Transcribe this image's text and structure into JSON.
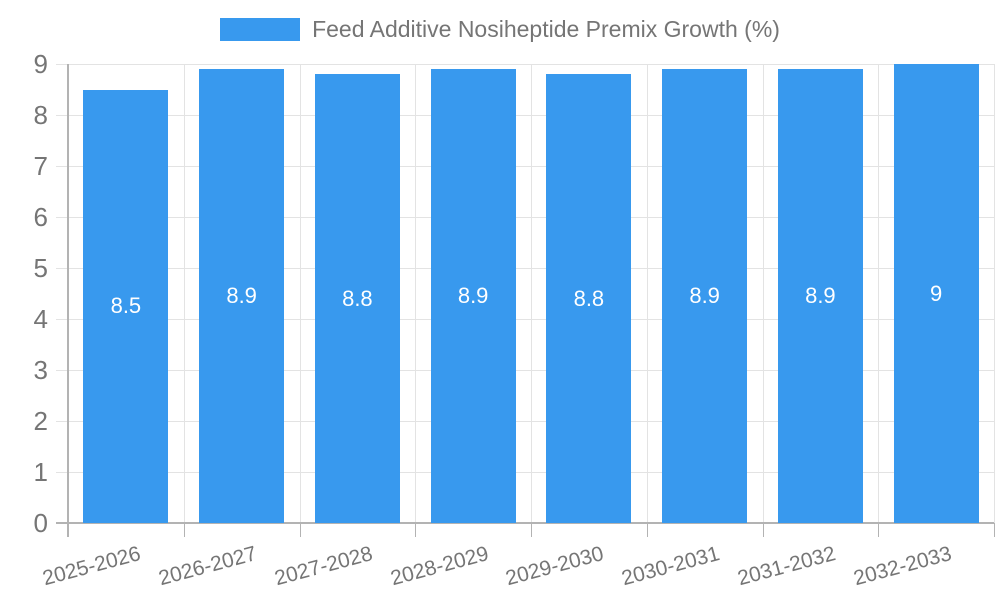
{
  "legend": {
    "label": "Feed Additive Nosiheptide Premix Growth (%)",
    "swatch_color": "#3899EE"
  },
  "colors": {
    "bar": "#3899EE",
    "bar_label_text": "#ffffff",
    "tick_text": "#757575",
    "grid_line": "#e3e3e3",
    "axis_line": "#b3b3b3",
    "background": "#ffffff"
  },
  "chart_data": {
    "type": "bar",
    "title": "Feed Additive Nosiheptide Premix Growth (%)",
    "categories": [
      "2025-2026",
      "2026-2027",
      "2027-2028",
      "2028-2029",
      "2029-2030",
      "2030-2031",
      "2031-2032",
      "2032-2033"
    ],
    "values": [
      8.5,
      8.9,
      8.8,
      8.9,
      8.8,
      8.9,
      8.9,
      9
    ],
    "value_labels": [
      "8.5",
      "8.9",
      "8.8",
      "8.9",
      "8.8",
      "8.9",
      "8.9",
      "9"
    ],
    "xlabel": "",
    "ylabel": "",
    "ylim": [
      0,
      9
    ],
    "yticks": [
      0,
      1,
      2,
      3,
      4,
      5,
      6,
      7,
      8,
      9
    ],
    "grid": true,
    "legend_position": "top",
    "bar_color": "#3899EE",
    "value_label_color": "#ffffff"
  }
}
